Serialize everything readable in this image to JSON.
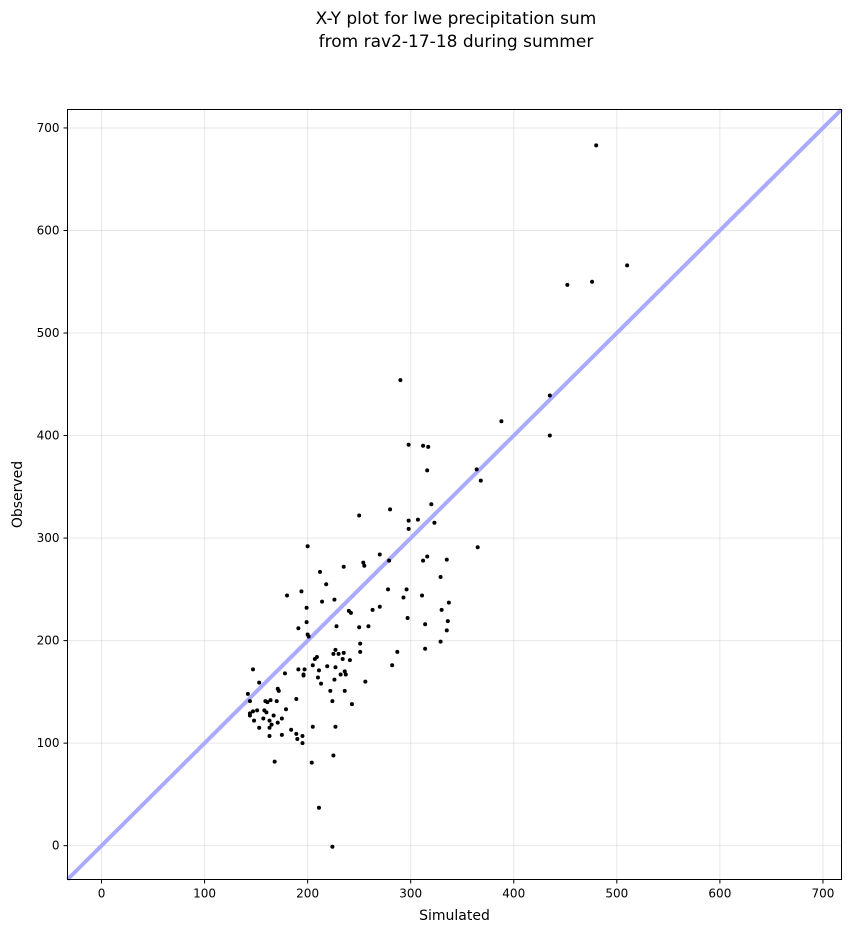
{
  "chart_data": {
    "type": "scatter",
    "title_lines": [
      "X-Y plot for lwe precipitation sum",
      "from rav2-17-18 during summer"
    ],
    "xlabel": "Simulated",
    "ylabel": "Observed",
    "xlim": [
      -33,
      718
    ],
    "ylim": [
      -33,
      718
    ],
    "xticks": [
      0,
      100,
      200,
      300,
      400,
      500,
      600,
      700
    ],
    "yticks": [
      0,
      100,
      200,
      300,
      400,
      500,
      600,
      700
    ],
    "grid": true,
    "reference_line": "y = x",
    "colors": {
      "points": "#000000",
      "reference_line": "#aaaaff"
    },
    "points": [
      [
        480,
        683
      ],
      [
        510,
        566
      ],
      [
        476,
        550
      ],
      [
        452,
        547
      ],
      [
        290,
        454
      ],
      [
        435,
        439
      ],
      [
        388,
        414
      ],
      [
        435,
        400
      ],
      [
        298,
        391
      ],
      [
        312,
        390
      ],
      [
        317,
        389
      ],
      [
        316,
        366
      ],
      [
        364,
        367
      ],
      [
        368,
        356
      ],
      [
        320,
        333
      ],
      [
        280,
        328
      ],
      [
        250,
        322
      ],
      [
        298,
        317
      ],
      [
        307,
        318
      ],
      [
        323,
        315
      ],
      [
        298,
        309
      ],
      [
        200,
        292
      ],
      [
        365,
        291
      ],
      [
        316,
        282
      ],
      [
        312,
        278
      ],
      [
        270,
        284
      ],
      [
        335,
        279
      ],
      [
        279,
        278
      ],
      [
        254,
        276
      ],
      [
        255,
        273
      ],
      [
        235,
        272
      ],
      [
        212,
        267
      ],
      [
        329,
        262
      ],
      [
        218,
        255
      ],
      [
        296,
        250
      ],
      [
        278,
        250
      ],
      [
        194,
        248
      ],
      [
        180,
        244
      ],
      [
        311,
        244
      ],
      [
        293,
        242
      ],
      [
        226,
        240
      ],
      [
        214,
        238
      ],
      [
        337,
        237
      ],
      [
        270,
        233
      ],
      [
        199,
        232
      ],
      [
        330,
        230
      ],
      [
        263,
        230
      ],
      [
        240,
        229
      ],
      [
        242,
        227
      ],
      [
        297,
        222
      ],
      [
        336,
        219
      ],
      [
        199,
        218
      ],
      [
        314,
        216
      ],
      [
        259,
        214
      ],
      [
        228,
        214
      ],
      [
        250,
        213
      ],
      [
        191,
        212
      ],
      [
        335,
        210
      ],
      [
        200,
        206
      ],
      [
        201,
        204
      ],
      [
        329,
        199
      ],
      [
        251,
        197
      ],
      [
        314,
        192
      ],
      [
        227,
        191
      ],
      [
        251,
        189
      ],
      [
        287,
        189
      ],
      [
        230,
        187
      ],
      [
        225,
        187
      ],
      [
        209,
        184
      ],
      [
        235,
        188
      ],
      [
        207,
        182
      ],
      [
        241,
        181
      ],
      [
        234,
        182
      ],
      [
        219,
        175
      ],
      [
        282,
        176
      ],
      [
        205,
        176
      ],
      [
        227,
        174
      ],
      [
        211,
        171
      ],
      [
        197,
        172
      ],
      [
        191,
        172
      ],
      [
        147,
        172
      ],
      [
        236,
        170
      ],
      [
        237,
        167
      ],
      [
        178,
        168
      ],
      [
        196,
        167
      ],
      [
        232,
        167
      ],
      [
        210,
        164
      ],
      [
        226,
        162
      ],
      [
        196,
        166
      ],
      [
        213,
        158
      ],
      [
        256,
        160
      ],
      [
        153,
        159
      ],
      [
        142,
        148
      ],
      [
        222,
        151
      ],
      [
        236,
        151
      ],
      [
        171,
        153
      ],
      [
        172,
        151
      ],
      [
        144,
        141
      ],
      [
        164,
        142
      ],
      [
        161,
        140
      ],
      [
        170,
        141
      ],
      [
        159,
        141
      ],
      [
        224,
        141
      ],
      [
        189,
        143
      ],
      [
        243,
        138
      ],
      [
        144,
        129
      ],
      [
        179,
        133
      ],
      [
        167,
        127
      ],
      [
        175,
        124
      ],
      [
        160,
        130
      ],
      [
        158,
        132
      ],
      [
        151,
        132
      ],
      [
        147,
        131
      ],
      [
        144,
        127
      ],
      [
        171,
        120
      ],
      [
        157,
        124
      ],
      [
        163,
        122
      ],
      [
        148,
        122
      ],
      [
        165,
        118
      ],
      [
        205,
        116
      ],
      [
        227,
        116
      ],
      [
        163,
        115
      ],
      [
        153,
        115
      ],
      [
        184,
        113
      ],
      [
        189,
        109
      ],
      [
        175,
        108
      ],
      [
        163,
        107
      ],
      [
        195,
        107
      ],
      [
        190,
        104
      ],
      [
        195,
        100
      ],
      [
        225,
        88
      ],
      [
        168,
        82
      ],
      [
        204,
        81
      ],
      [
        211,
        37
      ],
      [
        224,
        -1
      ]
    ]
  }
}
